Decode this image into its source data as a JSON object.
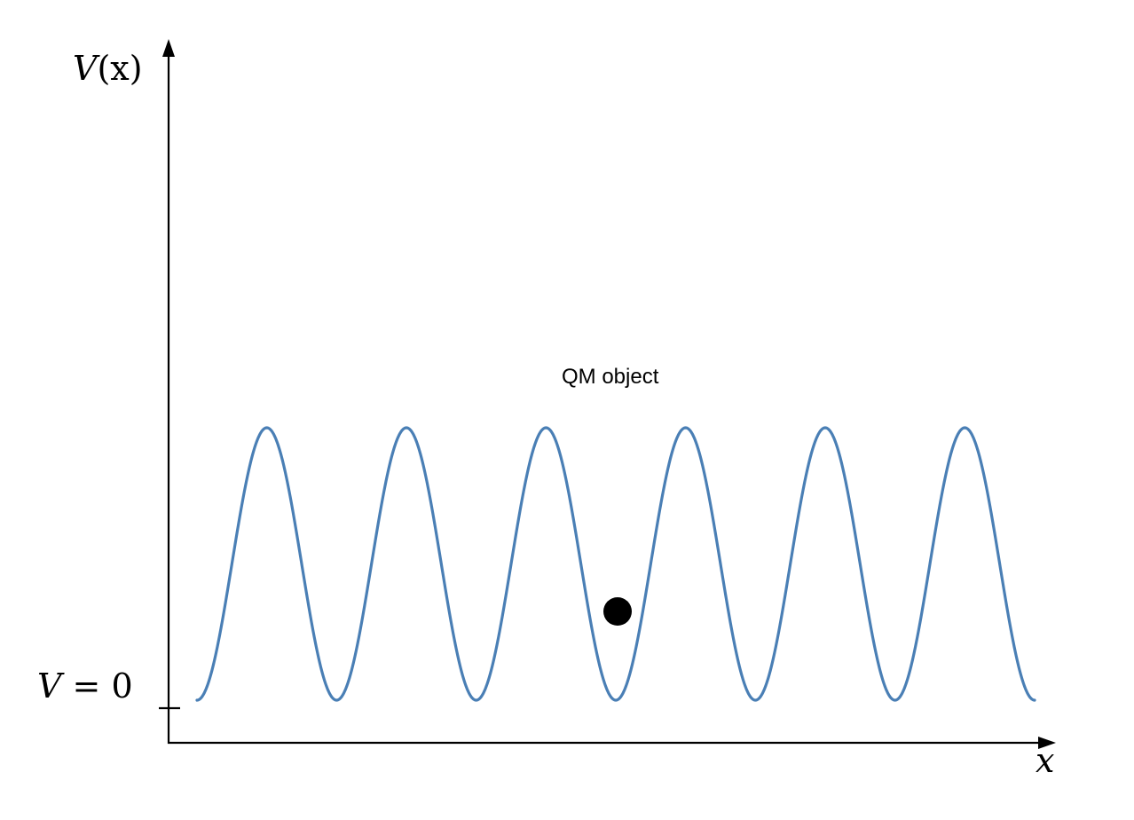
{
  "axes": {
    "y_label_main": "V",
    "y_label_arg": "(x)",
    "x_label": "x",
    "baseline_label_var": "V",
    "baseline_label_rest": " = 0"
  },
  "annotation": {
    "object_label": "QM object"
  },
  "colors": {
    "curve": "#4a7fb5",
    "axis": "#000000",
    "particle": "#000000"
  },
  "potential": {
    "shape": "periodic cosine potential",
    "periods": 6,
    "minimum_value": 0
  }
}
